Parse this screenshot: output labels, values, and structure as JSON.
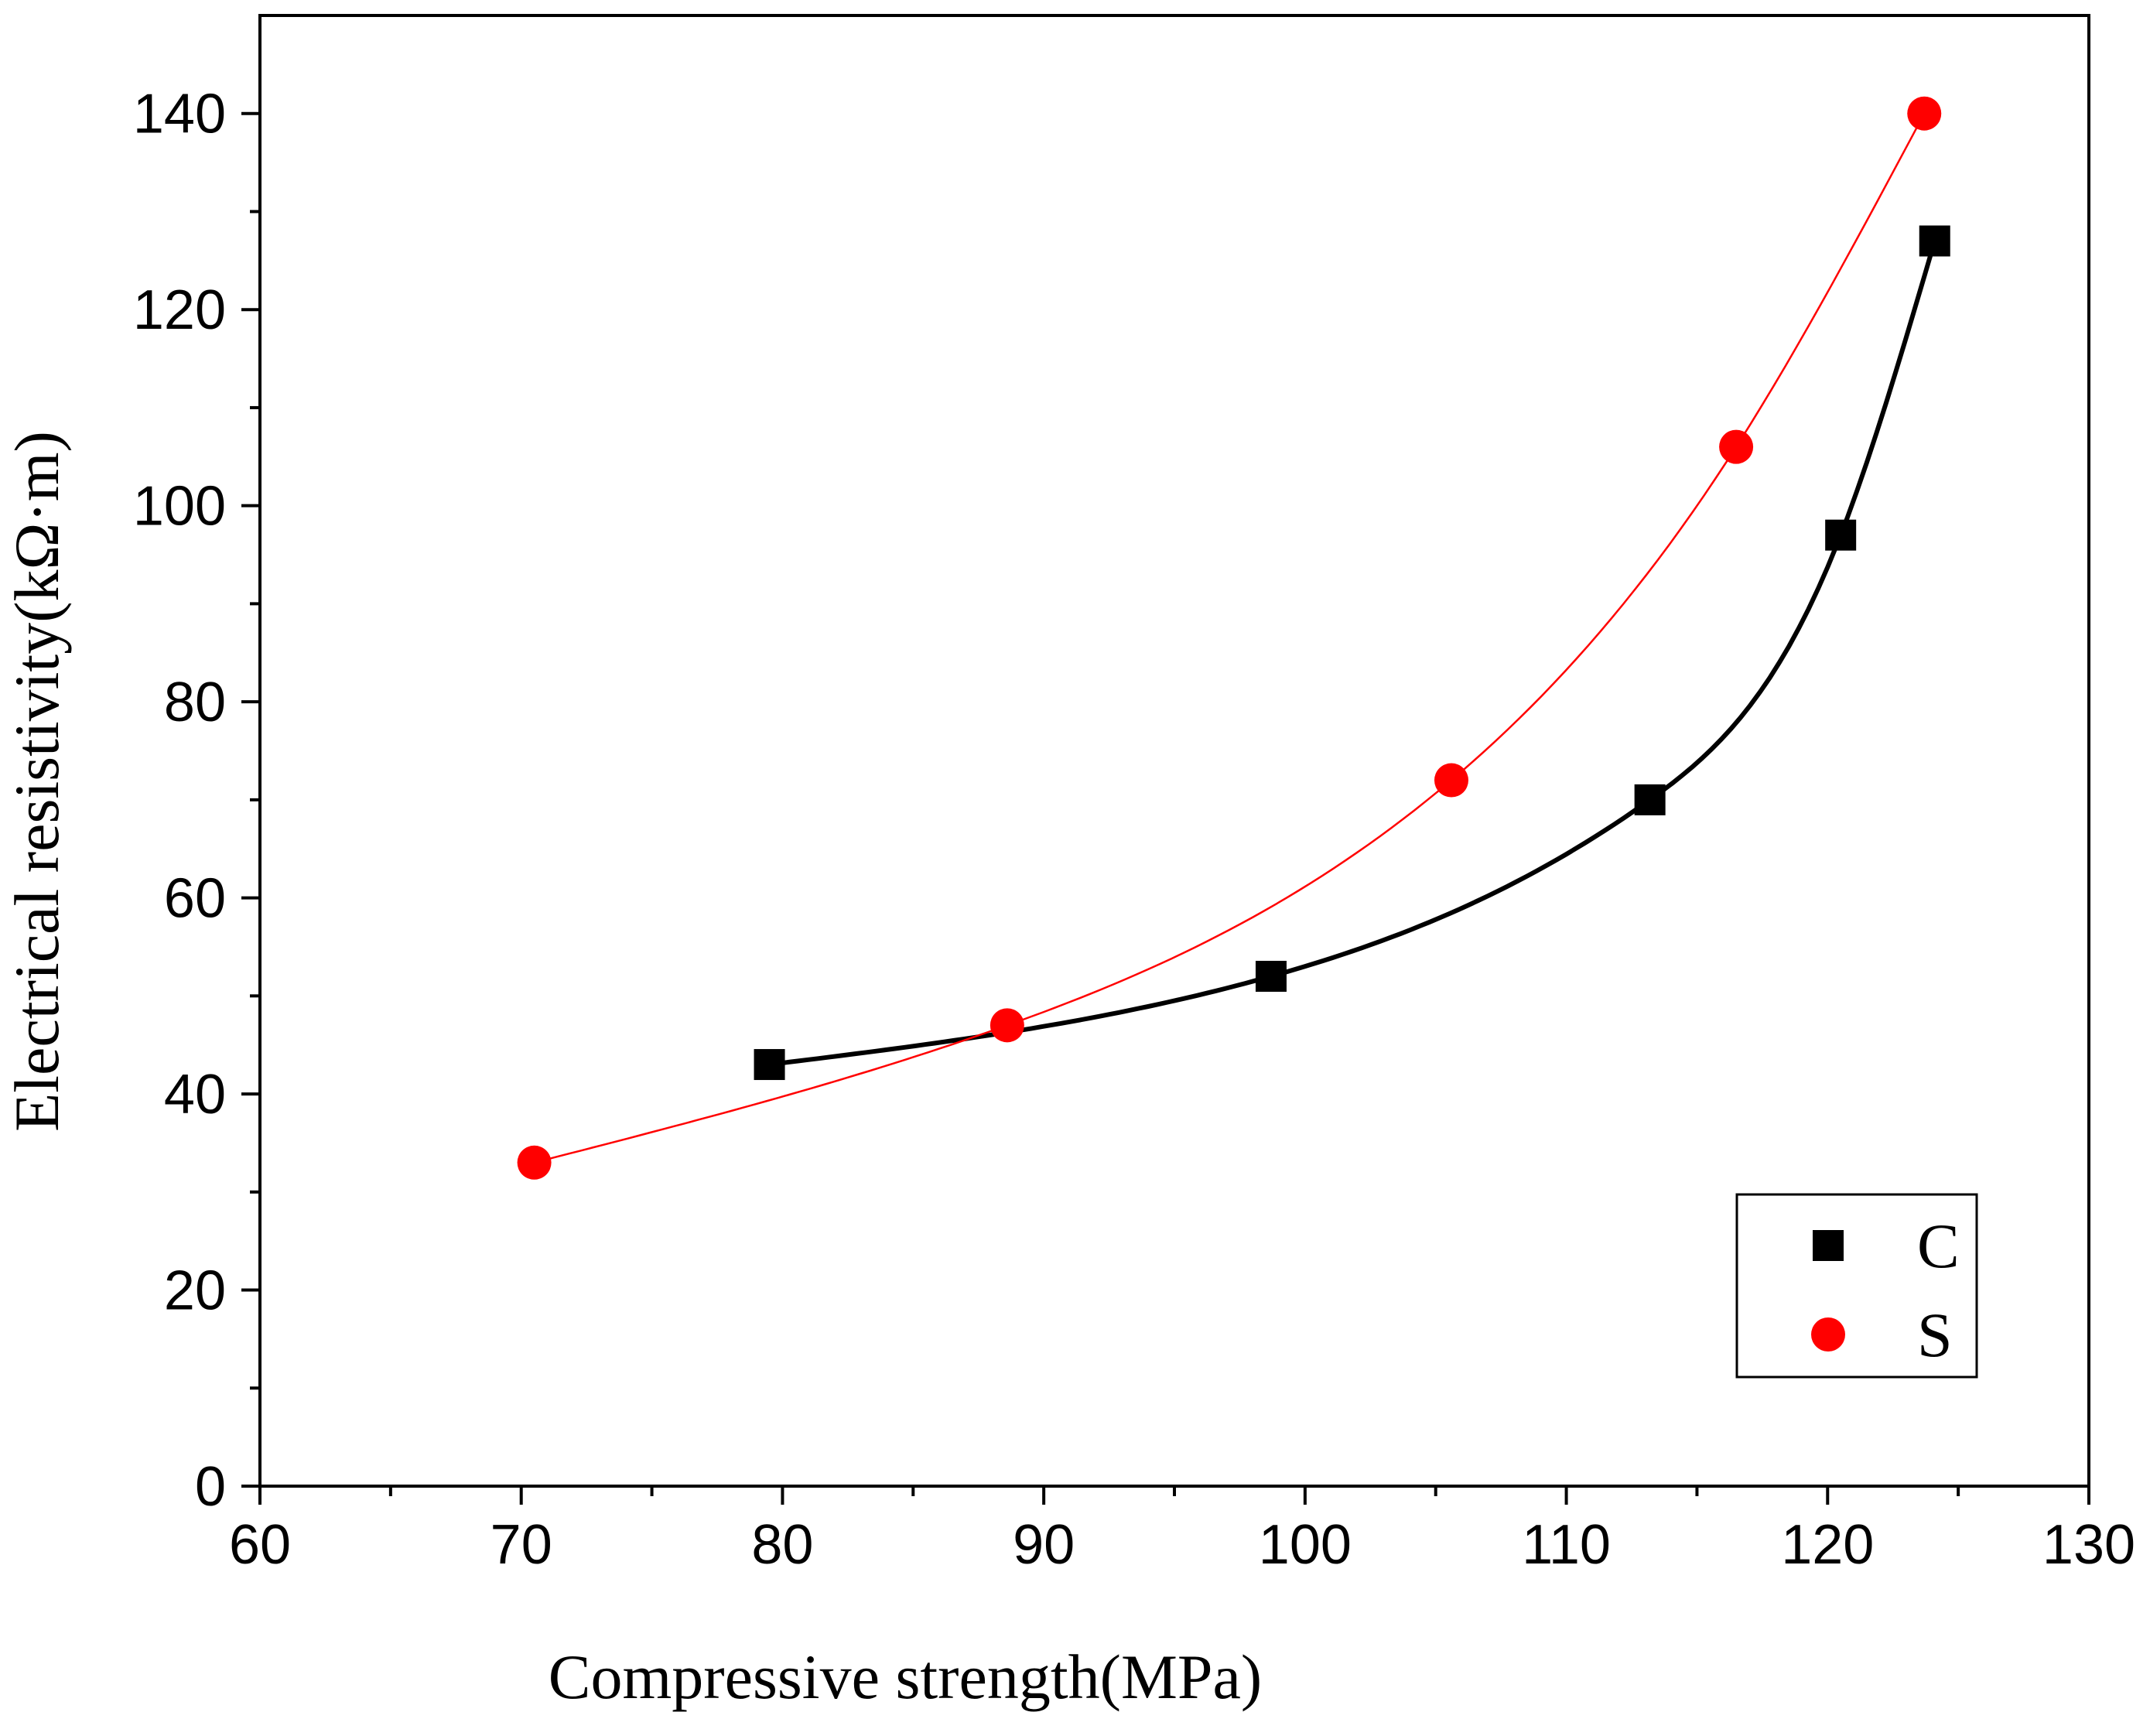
{
  "chart_data": {
    "type": "scatter",
    "xlabel": "Compressive strength(MPa)",
    "ylabel": "Electrical resistivity(kΩ·m)",
    "xlim": [
      60,
      130
    ],
    "ylim": [
      0,
      150
    ],
    "x_ticks": [
      60,
      70,
      80,
      90,
      100,
      110,
      120,
      130
    ],
    "x_tick_labels": [
      "60",
      "70",
      "80",
      "90",
      "100",
      "110",
      "120",
      "130"
    ],
    "y_ticks": [
      0,
      20,
      40,
      60,
      80,
      100,
      120,
      140
    ],
    "y_tick_labels": [
      "0",
      "20",
      "40",
      "60",
      "80",
      "100",
      "120",
      "140"
    ],
    "grid": false,
    "legend_position": "bottom-right",
    "series": [
      {
        "name": "C",
        "marker": "square",
        "color": "#000000",
        "fit_line": true,
        "x": [
          79.5,
          98.7,
          113.2,
          120.5,
          124.1
        ],
        "y": [
          43,
          52,
          70,
          97,
          127
        ]
      },
      {
        "name": "S",
        "marker": "circle",
        "color": "#ff0000",
        "fit_line": true,
        "x": [
          70.5,
          88.6,
          105.6,
          116.5,
          123.7
        ],
        "y": [
          33,
          47,
          72,
          106,
          140
        ]
      }
    ]
  }
}
